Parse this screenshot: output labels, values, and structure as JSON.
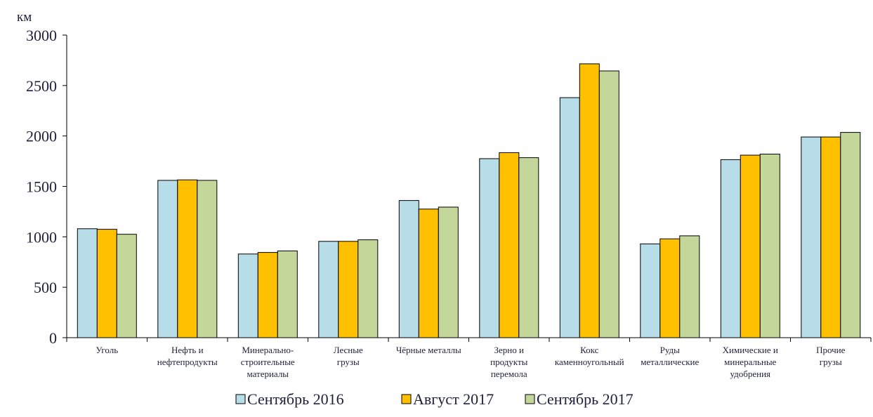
{
  "chart_data": {
    "type": "bar",
    "ylabel": "км",
    "ylim": [
      0,
      3000
    ],
    "yticks": [
      0,
      500,
      1000,
      1500,
      2000,
      2500,
      3000
    ],
    "grid": false,
    "legend_position": "bottom",
    "categories": [
      [
        "Уголь"
      ],
      [
        "Нефть и",
        "нефтепродукты"
      ],
      [
        "Минерально-",
        "строительные",
        "материалы"
      ],
      [
        "Лесные",
        "грузы"
      ],
      [
        "Чёрные металлы"
      ],
      [
        "Зерно и",
        "продукты",
        "перемола"
      ],
      [
        "Кокс",
        "каменноугольный"
      ],
      [
        "Руды",
        "металлические"
      ],
      [
        "Химические и",
        "минеральные",
        "удобрения"
      ],
      [
        "Прочие",
        "грузы"
      ]
    ],
    "series": [
      {
        "name": "Сентябрь 2016",
        "color": "#b7dde8",
        "values": [
          1080,
          1560,
          830,
          955,
          1360,
          1775,
          2380,
          930,
          1765,
          1990
        ]
      },
      {
        "name": "Август 2017",
        "color": "#ffc000",
        "values": [
          1075,
          1565,
          845,
          955,
          1275,
          1835,
          2715,
          980,
          1810,
          1990
        ]
      },
      {
        "name": "Сентябрь 2017",
        "color": "#c4d79b",
        "values": [
          1025,
          1560,
          860,
          970,
          1295,
          1785,
          2645,
          1010,
          1820,
          2035
        ]
      }
    ]
  }
}
